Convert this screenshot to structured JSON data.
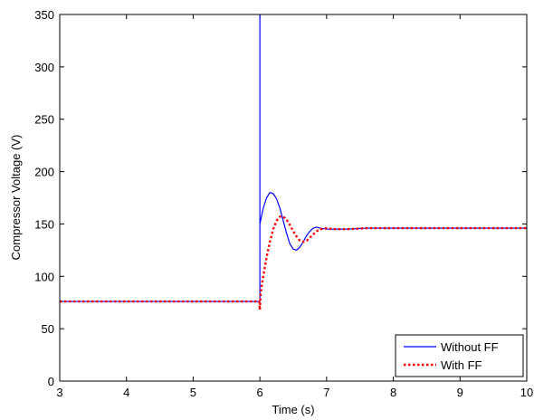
{
  "chart_data": {
    "type": "line",
    "title": "",
    "xlabel": "Time (s)",
    "ylabel": "Compressor Voltage (V)",
    "xlim": [
      3,
      10
    ],
    "ylim": [
      0,
      350
    ],
    "xticks": [
      3,
      4,
      5,
      6,
      7,
      8,
      9,
      10
    ],
    "yticks": [
      0,
      50,
      100,
      150,
      200,
      250,
      300,
      350
    ],
    "grid": false,
    "legend_position": "bottom-right",
    "series": [
      {
        "name": "Without FF",
        "color": "#0000ff",
        "style": "solid",
        "x": [
          3,
          6,
          6,
          6,
          6.05,
          6.1,
          6.15,
          6.2,
          6.25,
          6.3,
          6.35,
          6.4,
          6.45,
          6.5,
          6.55,
          6.6,
          6.65,
          6.7,
          6.75,
          6.8,
          6.85,
          6.9,
          7.0,
          7.1,
          7.3,
          7.6,
          8,
          9,
          10
        ],
        "y": [
          76,
          76,
          350,
          150,
          165,
          175,
          180,
          179,
          174,
          165,
          153,
          141,
          131,
          126,
          125,
          128,
          133,
          139,
          143,
          146,
          147,
          146,
          145,
          145,
          145,
          146,
          146,
          146,
          146
        ]
      },
      {
        "name": "With FF",
        "color": "#ff0000",
        "style": "dotted",
        "x": [
          3,
          5.99,
          6,
          6.01,
          6.02,
          6.05,
          6.1,
          6.15,
          6.2,
          6.25,
          6.3,
          6.35,
          6.4,
          6.45,
          6.5,
          6.55,
          6.6,
          6.65,
          6.7,
          6.75,
          6.8,
          6.85,
          6.9,
          7.0,
          7.1,
          7.3,
          7.6,
          8,
          9,
          10
        ],
        "y": [
          76,
          76,
          68,
          82,
          88,
          100,
          118,
          133,
          145,
          153,
          157,
          157,
          154,
          149,
          143,
          138,
          134,
          133,
          134,
          137,
          140,
          143,
          145,
          146,
          145,
          145,
          146,
          146,
          146,
          146
        ]
      }
    ]
  }
}
